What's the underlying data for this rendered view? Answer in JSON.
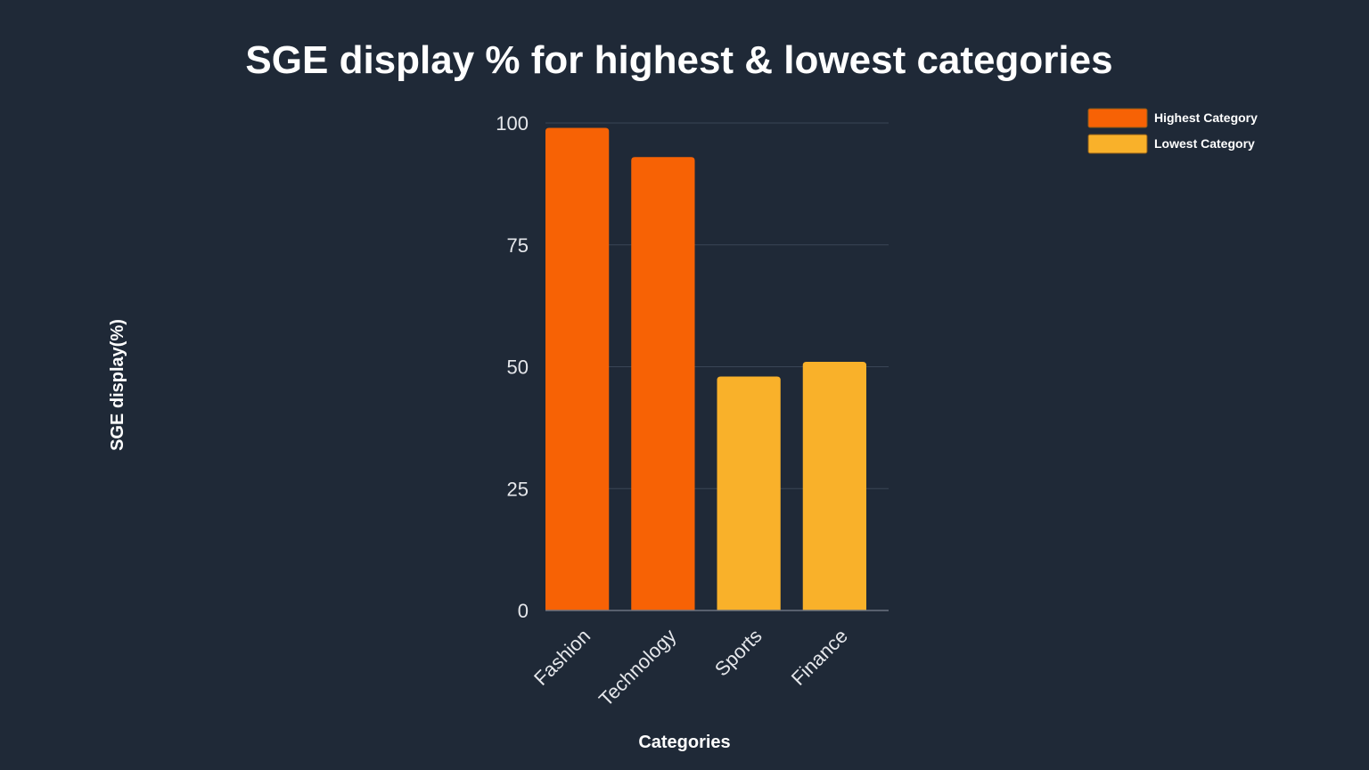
{
  "chart_data": {
    "type": "bar",
    "title": "SGE display % for highest & lowest categories",
    "xlabel": "Categories",
    "ylabel": "SGE display(%)",
    "categories": [
      "Fashion",
      "Technology",
      "Sports",
      "Finance"
    ],
    "values": [
      99,
      93,
      48,
      51
    ],
    "groups": [
      "Highest Category",
      "Highest Category",
      "Lowest Category",
      "Lowest Category"
    ],
    "ylim": [
      0,
      100
    ],
    "yticks": [
      0,
      25,
      50,
      75,
      100
    ],
    "grid": true,
    "legend_position": "top-right",
    "legend": [
      {
        "name": "Highest Category",
        "color": "#f76205"
      },
      {
        "name": "Lowest Category",
        "color": "#f9b12a"
      }
    ]
  }
}
